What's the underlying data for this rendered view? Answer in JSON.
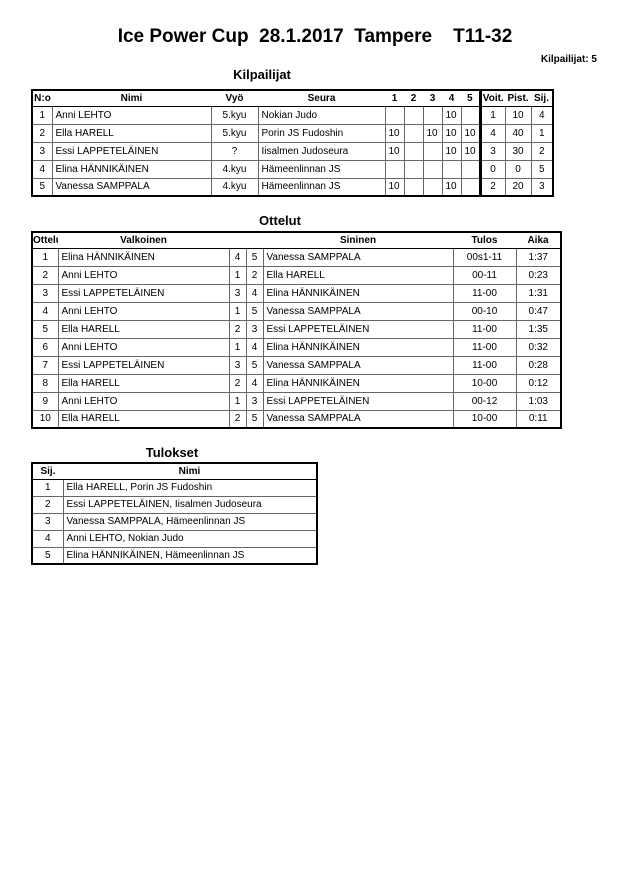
{
  "title": "Ice Power Cup  28.1.2017  Tampere    T11-32",
  "competitor_count": "Kilpailijat: 5",
  "competitors": {
    "heading": "Kilpailijat",
    "columns": [
      "N:o",
      "Nimi",
      "Vyö",
      "Seura",
      "1",
      "2",
      "3",
      "4",
      "5",
      "Voit.",
      "Pist.",
      "Sij."
    ],
    "rows": [
      [
        "1",
        "Anni LEHTO",
        "5.kyu",
        "Nokian Judo",
        "",
        "",
        "",
        "10",
        "",
        "1",
        "10",
        "4"
      ],
      [
        "2",
        "Ella HARELL",
        "5.kyu",
        "Porin JS Fudoshin",
        "10",
        "",
        "10",
        "10",
        "10",
        "4",
        "40",
        "1"
      ],
      [
        "3",
        "Essi LAPPETELÄINEN",
        "?",
        "Iisalmen Judoseura",
        "10",
        "",
        "",
        "10",
        "10",
        "3",
        "30",
        "2"
      ],
      [
        "4",
        "Elina HÄNNIKÄINEN",
        "4.kyu",
        "Hämeenlinnan JS",
        "",
        "",
        "",
        "",
        "",
        "0",
        "0",
        "5"
      ],
      [
        "5",
        "Vanessa SAMPPALA",
        "4.kyu",
        "Hämeenlinnan JS",
        "10",
        "",
        "",
        "10",
        "",
        "2",
        "20",
        "3"
      ]
    ]
  },
  "matches": {
    "heading": "Ottelut",
    "columns": [
      "Ottelu",
      "Valkoinen",
      "",
      "",
      "Sininen",
      "Tulos",
      "Aika"
    ],
    "rows": [
      [
        "1",
        "Elina HÄNNIKÄINEN",
        "4",
        "5",
        "Vanessa SAMPPALA",
        "00s1-11",
        "1:37"
      ],
      [
        "2",
        "Anni LEHTO",
        "1",
        "2",
        "Ella HARELL",
        "00-11",
        "0:23"
      ],
      [
        "3",
        "Essi LAPPETELÄINEN",
        "3",
        "4",
        "Elina HÄNNIKÄINEN",
        "11-00",
        "1:31"
      ],
      [
        "4",
        "Anni LEHTO",
        "1",
        "5",
        "Vanessa SAMPPALA",
        "00-10",
        "0:47"
      ],
      [
        "5",
        "Ella HARELL",
        "2",
        "3",
        "Essi LAPPETELÄINEN",
        "11-00",
        "1:35"
      ],
      [
        "6",
        "Anni LEHTO",
        "1",
        "4",
        "Elina HÄNNIKÄINEN",
        "11-00",
        "0:32"
      ],
      [
        "7",
        "Essi LAPPETELÄINEN",
        "3",
        "5",
        "Vanessa SAMPPALA",
        "11-00",
        "0:28"
      ],
      [
        "8",
        "Ella HARELL",
        "2",
        "4",
        "Elina HÄNNIKÄINEN",
        "10-00",
        "0:12"
      ],
      [
        "9",
        "Anni LEHTO",
        "1",
        "3",
        "Essi LAPPETELÄINEN",
        "00-12",
        "1:03"
      ],
      [
        "10",
        "Ella HARELL",
        "2",
        "5",
        "Vanessa SAMPPALA",
        "10-00",
        "0:11"
      ]
    ]
  },
  "results": {
    "heading": "Tulokset",
    "columns": [
      "Sij.",
      "Nimi"
    ],
    "rows": [
      [
        "1",
        "Ella HARELL, Porin JS Fudoshin"
      ],
      [
        "2",
        "Essi LAPPETELÄINEN, Iisalmen Judoseura"
      ],
      [
        "3",
        "Vanessa SAMPPALA, Hämeenlinnan JS"
      ],
      [
        "4",
        "Anni LEHTO, Nokian Judo"
      ],
      [
        "5",
        "Elina HÄNNIKÄINEN, Hämeenlinnan JS"
      ]
    ]
  }
}
